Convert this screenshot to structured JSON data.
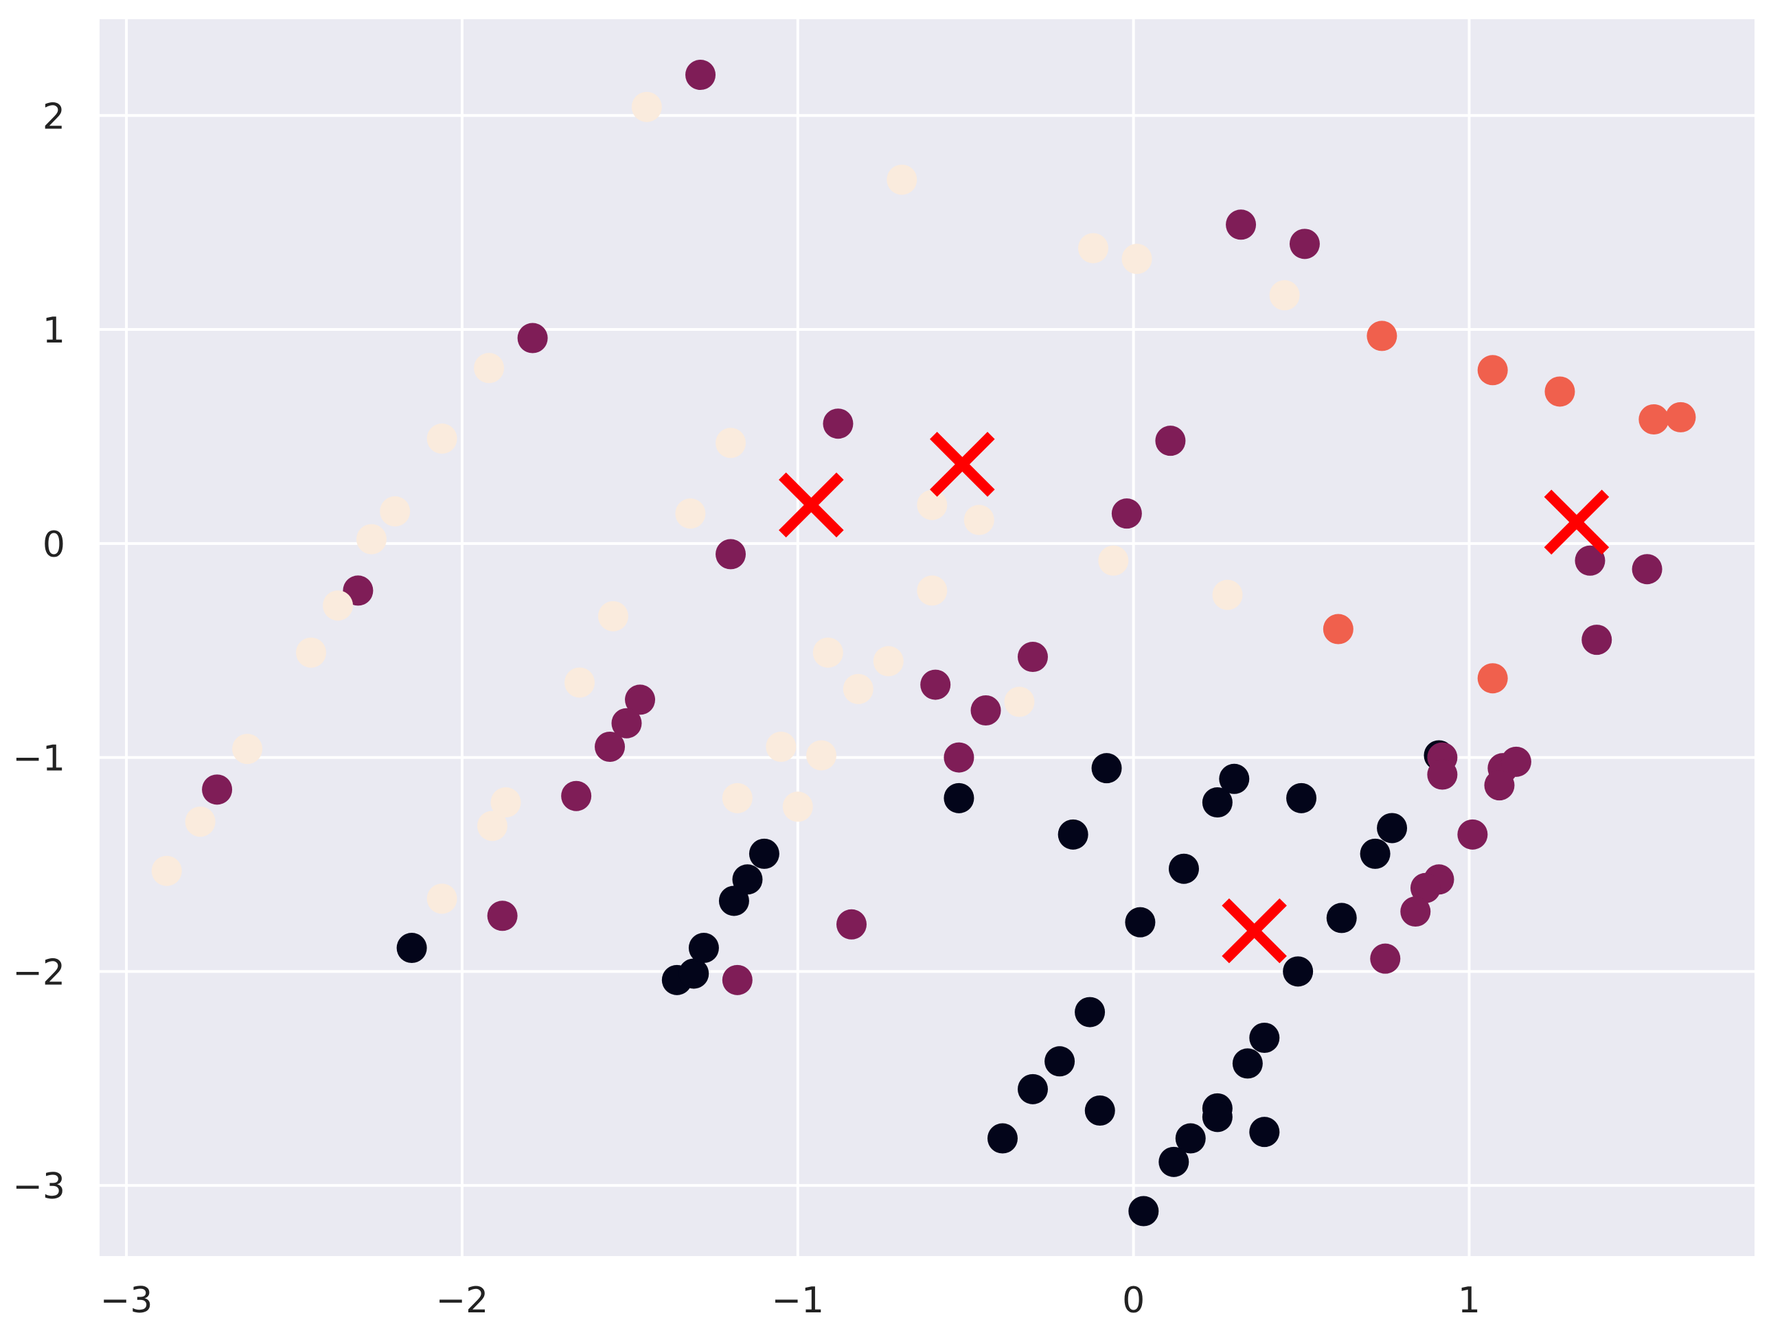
{
  "chart_data": {
    "type": "scatter",
    "title": "",
    "xlabel": "",
    "ylabel": "",
    "xlim": [
      -3.08,
      1.85
    ],
    "ylim": [
      -3.33,
      2.45
    ],
    "grid": true,
    "colors": {
      "background": "#EAEAF2",
      "grid": "#FFFFFF",
      "centroid": "#FF0000",
      "cluster": [
        "#03051A",
        "#7F1D57",
        "#F0604D",
        "#FAEBDD"
      ]
    },
    "x_ticks": [
      {
        "value": -3,
        "label": "−3"
      },
      {
        "value": -2,
        "label": "−2"
      },
      {
        "value": -1,
        "label": "−1"
      },
      {
        "value": 0,
        "label": "0"
      },
      {
        "value": 1,
        "label": "1"
      }
    ],
    "y_ticks": [
      {
        "value": 2,
        "label": "2"
      },
      {
        "value": 1,
        "label": "1"
      },
      {
        "value": 0,
        "label": "0"
      },
      {
        "value": -1,
        "label": "−1"
      },
      {
        "value": -2,
        "label": "−2"
      },
      {
        "value": -3,
        "label": "−3"
      }
    ],
    "series": [
      {
        "cluster": 0,
        "color": "#03051A",
        "points": [
          [
            -2.15,
            -1.89
          ],
          [
            -1.36,
            -2.04
          ],
          [
            -1.31,
            -2.01
          ],
          [
            -1.28,
            -1.89
          ],
          [
            -1.19,
            -1.67
          ],
          [
            -1.15,
            -1.57
          ],
          [
            -1.1,
            -1.45
          ],
          [
            -0.52,
            -1.19
          ],
          [
            -0.18,
            -1.36
          ],
          [
            -0.08,
            -1.05
          ],
          [
            0.91,
            -0.99
          ],
          [
            0.25,
            -1.21
          ],
          [
            0.3,
            -1.1
          ],
          [
            0.5,
            -1.19
          ],
          [
            0.77,
            -1.33
          ],
          [
            0.72,
            -1.45
          ],
          [
            0.15,
            -1.52
          ],
          [
            0.02,
            -1.77
          ],
          [
            0.62,
            -1.75
          ],
          [
            0.49,
            -2.0
          ],
          [
            -0.13,
            -2.19
          ],
          [
            -0.22,
            -2.42
          ],
          [
            -0.3,
            -2.55
          ],
          [
            -0.1,
            -2.65
          ],
          [
            -0.39,
            -2.78
          ],
          [
            0.39,
            -2.31
          ],
          [
            0.34,
            -2.43
          ],
          [
            0.25,
            -2.64
          ],
          [
            0.25,
            -2.68
          ],
          [
            0.17,
            -2.78
          ],
          [
            0.12,
            -2.89
          ],
          [
            0.39,
            -2.75
          ],
          [
            0.03,
            -3.12
          ]
        ]
      },
      {
        "cluster": 1,
        "color": "#7F1D57",
        "points": [
          [
            -1.29,
            2.19
          ],
          [
            -1.79,
            0.96
          ],
          [
            -0.88,
            0.56
          ],
          [
            -1.2,
            -0.05
          ],
          [
            -2.31,
            -0.22
          ],
          [
            -2.73,
            -1.15
          ],
          [
            -1.47,
            -0.73
          ],
          [
            -1.51,
            -0.84
          ],
          [
            -1.56,
            -0.95
          ],
          [
            -1.66,
            -1.18
          ],
          [
            -1.88,
            -1.74
          ],
          [
            -1.18,
            -2.04
          ],
          [
            -0.84,
            -1.78
          ],
          [
            -0.59,
            -0.66
          ],
          [
            -0.44,
            -0.78
          ],
          [
            -0.52,
            -1.0
          ],
          [
            -0.3,
            -0.53
          ],
          [
            -0.02,
            0.14
          ],
          [
            0.11,
            0.48
          ],
          [
            0.32,
            1.49
          ],
          [
            0.51,
            1.4
          ],
          [
            1.36,
            -0.08
          ],
          [
            1.53,
            -0.12
          ],
          [
            1.38,
            -0.45
          ],
          [
            0.92,
            -1.0
          ],
          [
            0.92,
            -1.08
          ],
          [
            1.1,
            -1.05
          ],
          [
            1.14,
            -1.02
          ],
          [
            1.09,
            -1.13
          ],
          [
            1.01,
            -1.36
          ],
          [
            0.91,
            -1.57
          ],
          [
            0.87,
            -1.61
          ],
          [
            0.84,
            -1.72
          ],
          [
            0.75,
            -1.94
          ]
        ]
      },
      {
        "cluster": 2,
        "color": "#F0604D",
        "points": [
          [
            0.74,
            0.97
          ],
          [
            1.07,
            0.81
          ],
          [
            1.27,
            0.71
          ],
          [
            1.55,
            0.58
          ],
          [
            1.63,
            0.59
          ],
          [
            0.61,
            -0.4
          ],
          [
            1.07,
            -0.63
          ]
        ]
      },
      {
        "cluster": 3,
        "color": "#FAEBDD",
        "points": [
          [
            -1.45,
            2.04
          ],
          [
            -0.69,
            1.7
          ],
          [
            -0.12,
            1.38
          ],
          [
            0.01,
            1.33
          ],
          [
            0.45,
            1.16
          ],
          [
            -1.92,
            0.82
          ],
          [
            -2.06,
            0.49
          ],
          [
            -1.2,
            0.47
          ],
          [
            -2.2,
            0.15
          ],
          [
            -2.27,
            0.02
          ],
          [
            -1.32,
            0.14
          ],
          [
            -0.6,
            0.18
          ],
          [
            -0.46,
            0.11
          ],
          [
            -0.06,
            -0.08
          ],
          [
            0.28,
            -0.24
          ],
          [
            -0.6,
            -0.22
          ],
          [
            -1.55,
            -0.34
          ],
          [
            -2.37,
            -0.29
          ],
          [
            -2.45,
            -0.51
          ],
          [
            -1.65,
            -0.65
          ],
          [
            -0.91,
            -0.51
          ],
          [
            -0.73,
            -0.55
          ],
          [
            -0.82,
            -0.68
          ],
          [
            -0.34,
            -0.74
          ],
          [
            -2.64,
            -0.96
          ],
          [
            -1.05,
            -0.95
          ],
          [
            -0.93,
            -0.99
          ],
          [
            -1.18,
            -1.19
          ],
          [
            -1.0,
            -1.23
          ],
          [
            -1.87,
            -1.21
          ],
          [
            -1.91,
            -1.32
          ],
          [
            -2.78,
            -1.3
          ],
          [
            -2.88,
            -1.53
          ],
          [
            -2.06,
            -1.66
          ]
        ]
      }
    ],
    "centroids": [
      [
        -0.96,
        0.18
      ],
      [
        -0.51,
        0.37
      ],
      [
        1.32,
        0.1
      ],
      [
        0.36,
        -1.81
      ]
    ]
  }
}
